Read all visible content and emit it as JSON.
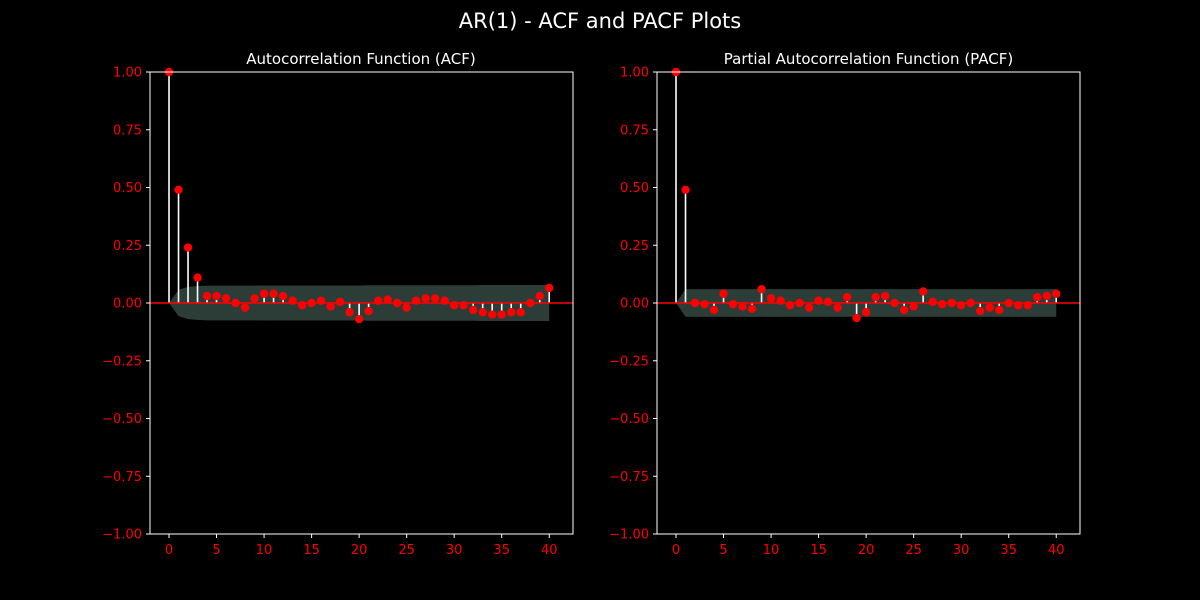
{
  "figure": {
    "suptitle": "AR(1) - ACF and PACF Plots",
    "background": "#000000"
  },
  "colors": {
    "marker": "#ff0000",
    "stem": "#ffffff",
    "baseline": "#ff0000",
    "confidence_band": "#2c3d38",
    "tick_label": "#ff0000",
    "title": "#ffffff",
    "frame": "#ffffff"
  },
  "chart_data": [
    {
      "type": "stem",
      "title": "Autocorrelation Function (ACF)",
      "xlabel": "",
      "ylabel": "",
      "xlim": [
        -2,
        42.5
      ],
      "ylim": [
        -1.0,
        1.0
      ],
      "xticks": [
        0,
        5,
        10,
        15,
        20,
        25,
        30,
        35,
        40
      ],
      "yticks": [
        "1.00",
        "0.75",
        "0.50",
        "0.25",
        "0.00",
        "−0.25",
        "−0.50",
        "−0.75",
        "−1.00"
      ],
      "ytick_values": [
        1.0,
        0.75,
        0.5,
        0.25,
        0.0,
        -0.25,
        -0.5,
        -0.75,
        -1.0
      ],
      "lags": [
        0,
        1,
        2,
        3,
        4,
        5,
        6,
        7,
        8,
        9,
        10,
        11,
        12,
        13,
        14,
        15,
        16,
        17,
        18,
        19,
        20,
        21,
        22,
        23,
        24,
        25,
        26,
        27,
        28,
        29,
        30,
        31,
        32,
        33,
        34,
        35,
        36,
        37,
        38,
        39,
        40
      ],
      "values": [
        1.0,
        0.49,
        0.24,
        0.11,
        0.03,
        0.03,
        0.02,
        0.0,
        -0.02,
        0.02,
        0.04,
        0.04,
        0.03,
        0.01,
        -0.01,
        0.0,
        0.01,
        -0.015,
        0.005,
        -0.04,
        -0.07,
        -0.035,
        0.01,
        0.015,
        0.0,
        -0.02,
        0.01,
        0.02,
        0.02,
        0.01,
        -0.01,
        -0.01,
        -0.03,
        -0.04,
        -0.05,
        -0.05,
        -0.04,
        -0.04,
        0.0,
        0.03,
        0.065
      ],
      "confidence_upper": [
        0.0,
        0.057,
        0.07,
        0.073,
        0.075,
        0.075,
        0.075,
        0.075,
        0.075,
        0.075,
        0.076,
        0.076,
        0.076,
        0.076,
        0.076,
        0.076,
        0.076,
        0.076,
        0.076,
        0.076,
        0.076,
        0.077,
        0.077,
        0.077,
        0.077,
        0.077,
        0.077,
        0.077,
        0.077,
        0.077,
        0.077,
        0.077,
        0.077,
        0.078,
        0.078,
        0.078,
        0.078,
        0.078,
        0.078,
        0.078,
        0.078
      ],
      "baseline": 0.0,
      "grid": false
    },
    {
      "type": "stem",
      "title": "Partial Autocorrelation Function (PACF)",
      "xlabel": "",
      "ylabel": "",
      "xlim": [
        -2,
        42.5
      ],
      "ylim": [
        -1.0,
        1.0
      ],
      "xticks": [
        0,
        5,
        10,
        15,
        20,
        25,
        30,
        35,
        40
      ],
      "yticks": [
        "1.00",
        "0.75",
        "0.50",
        "0.25",
        "0.00",
        "−0.25",
        "−0.50",
        "−0.75",
        "−1.00"
      ],
      "ytick_values": [
        1.0,
        0.75,
        0.5,
        0.25,
        0.0,
        -0.25,
        -0.5,
        -0.75,
        -1.0
      ],
      "lags": [
        0,
        1,
        2,
        3,
        4,
        5,
        6,
        7,
        8,
        9,
        10,
        11,
        12,
        13,
        14,
        15,
        16,
        17,
        18,
        19,
        20,
        21,
        22,
        23,
        24,
        25,
        26,
        27,
        28,
        29,
        30,
        31,
        32,
        33,
        34,
        35,
        36,
        37,
        38,
        39,
        40
      ],
      "values": [
        1.0,
        0.49,
        0.0,
        -0.005,
        -0.03,
        0.04,
        -0.005,
        -0.015,
        -0.025,
        0.06,
        0.02,
        0.01,
        -0.01,
        0.0,
        -0.02,
        0.01,
        0.005,
        -0.02,
        0.025,
        -0.065,
        -0.04,
        0.025,
        0.03,
        0.0,
        -0.03,
        -0.015,
        0.05,
        0.005,
        -0.005,
        0.0,
        -0.01,
        0.0,
        -0.035,
        -0.02,
        -0.03,
        0.0,
        -0.01,
        -0.01,
        0.025,
        0.03,
        0.04
      ],
      "confidence_upper": [
        0.0,
        0.06,
        0.06,
        0.06,
        0.06,
        0.06,
        0.06,
        0.06,
        0.06,
        0.06,
        0.06,
        0.06,
        0.06,
        0.06,
        0.06,
        0.06,
        0.06,
        0.06,
        0.06,
        0.06,
        0.06,
        0.06,
        0.06,
        0.06,
        0.06,
        0.06,
        0.06,
        0.06,
        0.06,
        0.06,
        0.06,
        0.06,
        0.06,
        0.06,
        0.06,
        0.06,
        0.06,
        0.06,
        0.06,
        0.06,
        0.06
      ],
      "baseline": 0.0,
      "grid": false
    }
  ]
}
